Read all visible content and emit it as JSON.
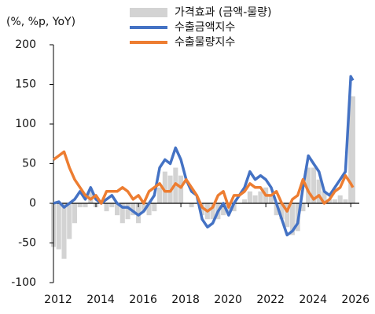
{
  "chart_data": {
    "type": "line",
    "y_label": "(%, %p, YoY)",
    "x": [
      2012,
      2012.25,
      2012.5,
      2012.75,
      2013,
      2013.25,
      2013.5,
      2013.75,
      2014,
      2014.25,
      2014.5,
      2014.75,
      2015,
      2015.25,
      2015.5,
      2015.75,
      2016,
      2016.25,
      2016.5,
      2016.75,
      2017,
      2017.25,
      2017.5,
      2017.75,
      2018,
      2018.25,
      2018.5,
      2018.75,
      2019,
      2019.25,
      2019.5,
      2019.75,
      2020,
      2020.25,
      2020.5,
      2020.75,
      2021,
      2021.25,
      2021.5,
      2021.75,
      2022,
      2022.25,
      2022.5,
      2022.75,
      2023,
      2023.25,
      2023.5,
      2023.75,
      2024,
      2024.25,
      2024.5,
      2024.75,
      2025,
      2025.25,
      2025.5,
      2025.75,
      2026,
      2026.1
    ],
    "series": [
      {
        "name": "가격효과 (금액-물량)",
        "color": "#d3d3d3",
        "type": "bar",
        "values": [
          -55,
          -58,
          -70,
          -45,
          -25,
          -5,
          -5,
          15,
          -5,
          0,
          -10,
          -5,
          -15,
          -25,
          -20,
          -15,
          -25,
          -10,
          -15,
          -10,
          20,
          40,
          35,
          45,
          35,
          0,
          -5,
          0,
          -15,
          -20,
          -20,
          -20,
          -15,
          -10,
          -10,
          0,
          5,
          15,
          10,
          15,
          20,
          10,
          -15,
          -20,
          -30,
          -40,
          -35,
          -10,
          45,
          45,
          30,
          15,
          5,
          5,
          10,
          5,
          135,
          135
        ]
      },
      {
        "name": "수출금액지수",
        "color": "#4472c4",
        "type": "line",
        "values": [
          0,
          2,
          -5,
          0,
          5,
          15,
          5,
          20,
          5,
          0,
          5,
          10,
          0,
          -5,
          -5,
          -10,
          -15,
          -10,
          0,
          10,
          45,
          55,
          50,
          70,
          55,
          30,
          15,
          10,
          -20,
          -30,
          -25,
          -10,
          0,
          -15,
          0,
          10,
          20,
          40,
          30,
          35,
          30,
          20,
          0,
          -20,
          -40,
          -35,
          -25,
          20,
          60,
          50,
          40,
          15,
          10,
          20,
          30,
          40,
          160,
          155
        ]
      },
      {
        "name": "수출물량지수",
        "color": "#ed7d31",
        "type": "line",
        "values": [
          55,
          60,
          65,
          45,
          30,
          20,
          10,
          5,
          10,
          0,
          15,
          15,
          15,
          20,
          15,
          5,
          10,
          0,
          15,
          20,
          25,
          15,
          15,
          25,
          20,
          30,
          20,
          10,
          -5,
          -10,
          -5,
          10,
          15,
          -5,
          10,
          10,
          15,
          25,
          20,
          20,
          10,
          10,
          15,
          0,
          -10,
          5,
          10,
          30,
          15,
          5,
          10,
          0,
          5,
          15,
          20,
          35,
          25,
          20
        ]
      }
    ],
    "xlim": [
      2012,
      2026.4
    ],
    "xticks": [
      2012,
      2014,
      2016,
      2018,
      2020,
      2022,
      2024,
      2026
    ],
    "ylim": [
      -100,
      200
    ],
    "yticks": [
      -100,
      -50,
      0,
      50,
      100,
      150,
      200
    ],
    "legend": "top"
  }
}
